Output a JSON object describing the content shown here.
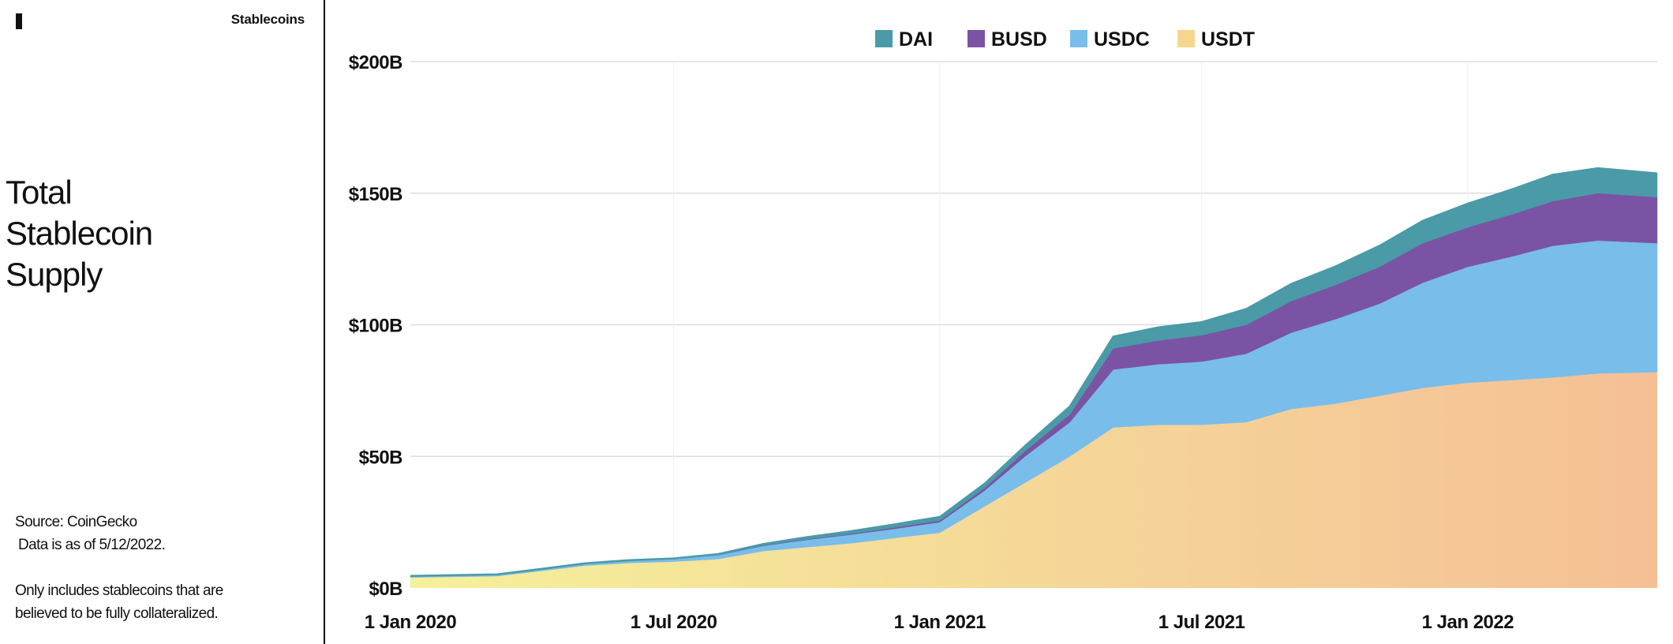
{
  "header": {
    "section_label": "Stablecoins",
    "logo": "bar-logo-mark"
  },
  "sidebar": {
    "title_lines": [
      "Total",
      "Stablecoin",
      "Supply"
    ],
    "source": "Source: CoinGecko",
    "data_note": "Data is as of 5/12/2022.",
    "footnote_lines": [
      "Only includes stablecoins that are",
      "believed to be fully collateralized."
    ]
  },
  "colors": {
    "DAI": "#4a9aa8",
    "BUSD": "#7b53a4",
    "USDC": "#79bdea",
    "USDT_start": "#f5f09a",
    "USDT_end": "#f5bf96",
    "grid": "#dddddd"
  },
  "chart_data": {
    "type": "area",
    "stacked": true,
    "units": "USD billions",
    "x_range": [
      "2020-01-01",
      "2022-05-12"
    ],
    "ylim": [
      0,
      200
    ],
    "y_ticks": [
      "$0B",
      "$50B",
      "$100B",
      "$150B",
      "$200B"
    ],
    "y_tick_values": [
      0,
      50,
      100,
      150,
      200
    ],
    "x_ticks": [
      "1 Jan 2020",
      "1 Jul 2020",
      "1 Jan 2021",
      "1 Jul 2021",
      "1 Jan 2022"
    ],
    "x_tick_dates": [
      "2020-01-01",
      "2020-07-01",
      "2021-01-01",
      "2021-07-01",
      "2022-01-01"
    ],
    "grid": true,
    "legend_position": "top-center",
    "legend": [
      "DAI",
      "BUSD",
      "USDC",
      "USDT"
    ],
    "x": [
      "2020-01-01",
      "2020-03-01",
      "2020-04-01",
      "2020-05-01",
      "2020-06-01",
      "2020-07-01",
      "2020-08-01",
      "2020-09-01",
      "2020-10-01",
      "2020-11-01",
      "2020-12-01",
      "2021-01-01",
      "2021-02-01",
      "2021-03-01",
      "2021-04-01",
      "2021-05-01",
      "2021-06-01",
      "2021-07-01",
      "2021-08-01",
      "2021-09-01",
      "2021-10-01",
      "2021-11-01",
      "2021-12-01",
      "2022-01-01",
      "2022-02-01",
      "2022-03-01",
      "2022-04-01",
      "2022-05-12"
    ],
    "series": [
      {
        "name": "USDT",
        "values": [
          4,
          4.5,
          6.5,
          8.5,
          9.5,
          10,
          11,
          14,
          15.5,
          17,
          19,
          21,
          31,
          40,
          50,
          61,
          62,
          62,
          63,
          68,
          70,
          73,
          76,
          78,
          79,
          80,
          81.5,
          82
        ]
      },
      {
        "name": "USDC",
        "values": [
          0.5,
          0.6,
          0.7,
          0.8,
          0.9,
          1,
          1.5,
          2,
          2.8,
          3.3,
          3.5,
          4,
          6,
          10,
          13,
          22,
          23,
          24,
          26,
          29,
          32,
          35,
          40,
          44,
          47,
          50,
          50.5,
          49
        ]
      },
      {
        "name": "BUSD",
        "values": [
          0,
          0,
          0,
          0,
          0,
          0,
          0.1,
          0.2,
          0.2,
          0.3,
          0.5,
          0.6,
          1,
          2,
          3,
          8,
          9,
          10,
          11,
          12,
          13,
          14,
          15,
          15,
          16,
          17,
          18,
          17.5
        ]
      },
      {
        "name": "DAI",
        "values": [
          0.1,
          0.1,
          0.1,
          0.1,
          0.15,
          0.2,
          0.3,
          0.5,
          0.8,
          1,
          1.2,
          1.4,
          1.6,
          2,
          3,
          4.5,
          5,
          5,
          6,
          6.5,
          7,
          8,
          8.5,
          9,
          9.5,
          10,
          9.5,
          9
        ]
      }
    ]
  }
}
